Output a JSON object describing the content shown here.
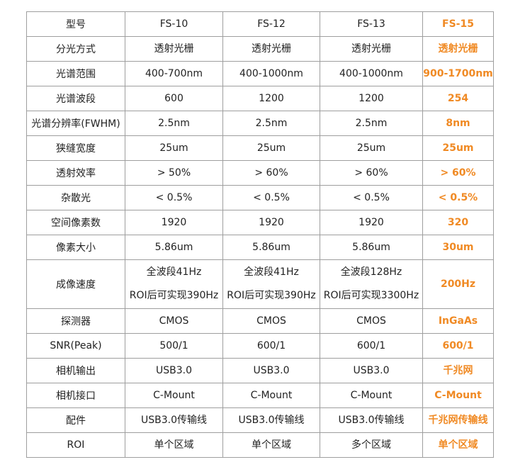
{
  "table": {
    "header": [
      "型号",
      "FS-10",
      "FS-12",
      "FS-13",
      "FS-15"
    ],
    "rows": [
      {
        "label": "分光方式",
        "values": [
          [
            "透射光栅"
          ],
          [
            "透射光栅"
          ],
          [
            "透射光栅"
          ],
          [
            "透射光栅"
          ]
        ]
      },
      {
        "label": "光谱范围",
        "values": [
          [
            "400-700nm"
          ],
          [
            "400-1000nm"
          ],
          [
            "400-1000nm"
          ],
          [
            "900-1700nm"
          ]
        ]
      },
      {
        "label": "光谱波段",
        "values": [
          [
            "600"
          ],
          [
            "1200"
          ],
          [
            "1200"
          ],
          [
            "254"
          ]
        ]
      },
      {
        "label": "光谱分辨率(FWHM)",
        "values": [
          [
            "2.5nm"
          ],
          [
            "2.5nm"
          ],
          [
            "2.5nm"
          ],
          [
            "8nm"
          ]
        ]
      },
      {
        "label": "狭缝宽度",
        "values": [
          [
            "25um"
          ],
          [
            "25um"
          ],
          [
            "25um"
          ],
          [
            "25um"
          ]
        ]
      },
      {
        "label": "透射效率",
        "values": [
          [
            "> 50%"
          ],
          [
            "> 60%"
          ],
          [
            "> 60%"
          ],
          [
            "> 60%"
          ]
        ]
      },
      {
        "label": "杂散光",
        "values": [
          [
            "< 0.5%"
          ],
          [
            "< 0.5%"
          ],
          [
            "< 0.5%"
          ],
          [
            "< 0.5%"
          ]
        ]
      },
      {
        "label": "空间像素数",
        "values": [
          [
            "1920"
          ],
          [
            "1920"
          ],
          [
            "1920"
          ],
          [
            "320"
          ]
        ]
      },
      {
        "label": "像素大小",
        "values": [
          [
            "5.86um"
          ],
          [
            "5.86um"
          ],
          [
            "5.86um"
          ],
          [
            "30um"
          ]
        ]
      },
      {
        "label": "成像速度",
        "values": [
          [
            "全波段41Hz",
            "ROI后可实现390Hz"
          ],
          [
            "全波段41Hz",
            "ROI后可实现390Hz"
          ],
          [
            "全波段128Hz",
            "ROI后可实现3300Hz"
          ],
          [
            "200Hz"
          ]
        ]
      },
      {
        "label": "探测器",
        "values": [
          [
            "CMOS"
          ],
          [
            "CMOS"
          ],
          [
            "CMOS"
          ],
          [
            "InGaAs"
          ]
        ]
      },
      {
        "label": "SNR(Peak)",
        "values": [
          [
            "500/1"
          ],
          [
            "600/1"
          ],
          [
            "600/1"
          ],
          [
            "600/1"
          ]
        ]
      },
      {
        "label": "相机输出",
        "values": [
          [
            "USB3.0"
          ],
          [
            "USB3.0"
          ],
          [
            "USB3.0"
          ],
          [
            "千兆网"
          ]
        ]
      },
      {
        "label": "相机接口",
        "values": [
          [
            "C-Mount"
          ],
          [
            "C-Mount"
          ],
          [
            "C-Mount"
          ],
          [
            "C-Mount"
          ]
        ]
      },
      {
        "label": "配件",
        "values": [
          [
            "USB3.0传输线"
          ],
          [
            "USB3.0传输线"
          ],
          [
            "USB3.0传输线"
          ],
          [
            "千兆网传输线"
          ]
        ]
      },
      {
        "label": "ROI",
        "values": [
          [
            "单个区域"
          ],
          [
            "单个区域"
          ],
          [
            "多个区域"
          ],
          [
            "单个区域"
          ]
        ]
      }
    ]
  },
  "colors": {
    "highlight": "#f08a24",
    "text": "#222222",
    "border": "#9e9e9e"
  }
}
